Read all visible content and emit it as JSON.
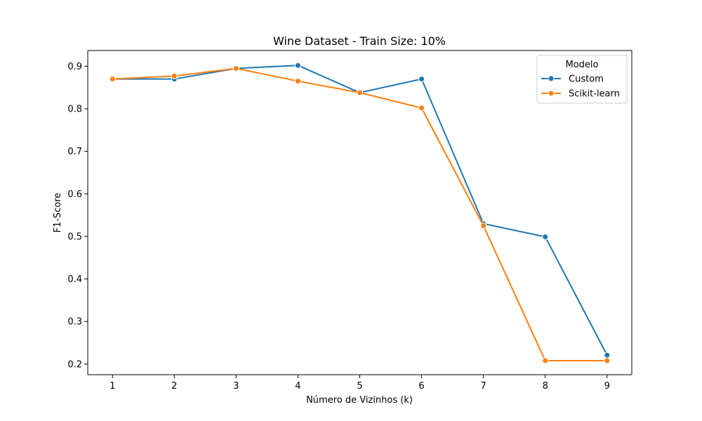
{
  "chart_data": {
    "type": "line",
    "title": "Wine Dataset - Train Size: 10%",
    "xlabel": "Número de Vizinhos (k)",
    "ylabel": "F1-Score",
    "x": [
      1,
      2,
      3,
      4,
      5,
      6,
      7,
      8,
      9
    ],
    "xticks": [
      "1",
      "2",
      "3",
      "4",
      "5",
      "6",
      "7",
      "8",
      "9"
    ],
    "yticks": [
      "0.2",
      "0.3",
      "0.4",
      "0.5",
      "0.6",
      "0.7",
      "0.8",
      "0.9"
    ],
    "xlim": [
      0.6,
      9.4
    ],
    "ylim": [
      0.175,
      0.937
    ],
    "grid": false,
    "legend": {
      "title": "Modelo",
      "placement": "top-right"
    },
    "series": [
      {
        "name": "Custom",
        "color": "#1f77b4",
        "values": [
          0.87,
          0.87,
          0.895,
          0.902,
          0.838,
          0.87,
          0.53,
          0.499,
          0.221
        ]
      },
      {
        "name": "Scikit-learn",
        "color": "#ff7f0e",
        "values": [
          0.87,
          0.877,
          0.895,
          0.865,
          0.838,
          0.802,
          0.525,
          0.208,
          0.208
        ]
      }
    ]
  }
}
